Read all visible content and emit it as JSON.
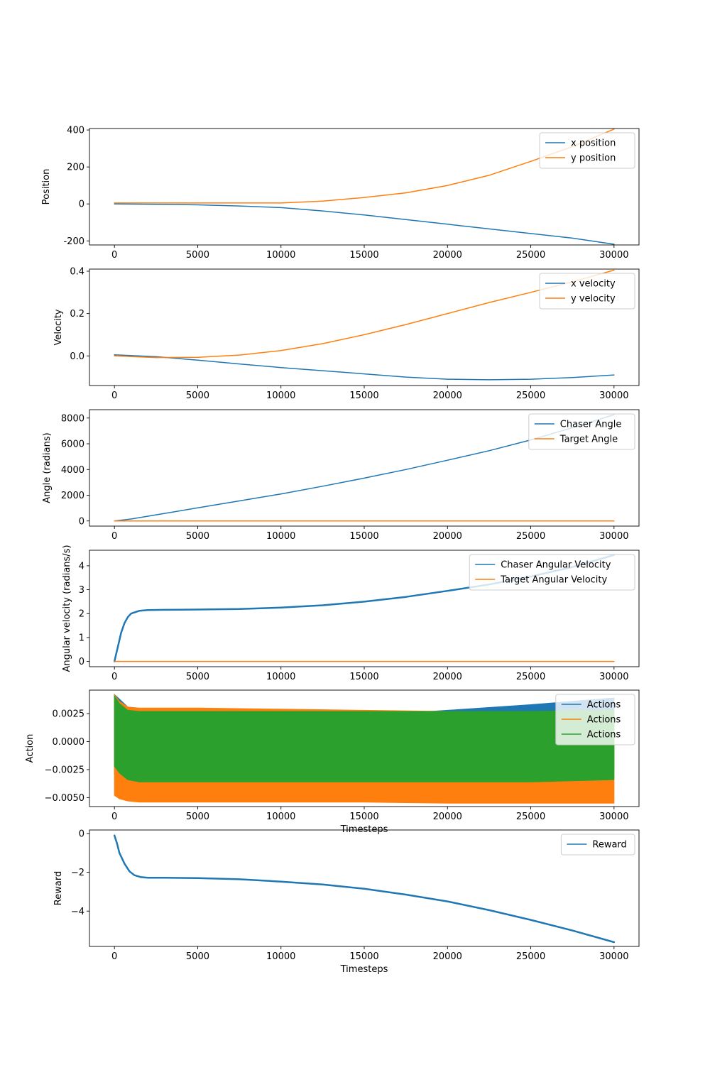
{
  "colors": {
    "blue": "#1f77b4",
    "orange": "#ff7f0e",
    "green": "#2ca02c"
  },
  "chart_data": [
    {
      "type": "line",
      "ylabel": "Position",
      "xlabel": "",
      "xlim": [
        -1500,
        31500
      ],
      "ylim": [
        -222,
        408
      ],
      "xticks": [
        "0",
        "5000",
        "10000",
        "15000",
        "20000",
        "25000",
        "30000"
      ],
      "yticks": [
        [
          "-200",
          -200
        ],
        [
          "0",
          0
        ],
        [
          "200",
          200
        ],
        [
          "400",
          400
        ]
      ],
      "legend_position": "top-right",
      "series": [
        {
          "name": "x position",
          "color": "#1f77b4",
          "x": [
            0,
            2500,
            5000,
            7500,
            10000,
            12500,
            15000,
            17500,
            20000,
            22500,
            25000,
            27500,
            30000
          ],
          "y": [
            0,
            -2,
            -5,
            -11,
            -20,
            -38,
            -60,
            -85,
            -110,
            -135,
            -160,
            -185,
            -218
          ]
        },
        {
          "name": "y position",
          "color": "#ff7f0e",
          "x": [
            0,
            2500,
            5000,
            7500,
            10000,
            12500,
            15000,
            17500,
            20000,
            22500,
            25000,
            27500,
            30000
          ],
          "y": [
            5,
            5,
            5,
            5,
            5,
            15,
            35,
            60,
            100,
            155,
            230,
            310,
            405
          ]
        }
      ]
    },
    {
      "type": "line",
      "ylabel": "Velocity",
      "xlabel": "",
      "xlim": [
        -1500,
        31500
      ],
      "ylim": [
        -0.14,
        0.41
      ],
      "xticks": [
        "0",
        "5000",
        "10000",
        "15000",
        "20000",
        "25000",
        "30000"
      ],
      "yticks": [
        [
          "0.0",
          0.0
        ],
        [
          "0.2",
          0.2
        ],
        [
          "0.4",
          0.4
        ]
      ],
      "legend_position": "top-right",
      "series": [
        {
          "name": "x velocity",
          "color": "#1f77b4",
          "x": [
            0,
            2500,
            5000,
            7500,
            10000,
            12500,
            15000,
            17500,
            20000,
            22500,
            25000,
            27500,
            30000
          ],
          "y": [
            0.005,
            -0.004,
            -0.02,
            -0.038,
            -0.055,
            -0.07,
            -0.085,
            -0.1,
            -0.11,
            -0.113,
            -0.11,
            -0.102,
            -0.09
          ]
        },
        {
          "name": "y velocity",
          "color": "#ff7f0e",
          "x": [
            0,
            2500,
            5000,
            7500,
            10000,
            12500,
            15000,
            17500,
            20000,
            22500,
            25000,
            27500,
            30000
          ],
          "y": [
            0.0,
            -0.008,
            -0.007,
            0.004,
            0.025,
            0.058,
            0.1,
            0.148,
            0.2,
            0.252,
            0.3,
            0.35,
            0.405
          ]
        }
      ]
    },
    {
      "type": "line",
      "ylabel": "Angle (radians)",
      "xlabel": "",
      "xlim": [
        -1500,
        31500
      ],
      "ylim": [
        -400,
        8650
      ],
      "xticks": [
        "0",
        "5000",
        "10000",
        "15000",
        "20000",
        "25000",
        "30000"
      ],
      "yticks": [
        [
          "0",
          0
        ],
        [
          "2000",
          2000
        ],
        [
          "4000",
          4000
        ],
        [
          "6000",
          6000
        ],
        [
          "8000",
          8000
        ]
      ],
      "legend_position": "top-right",
      "series": [
        {
          "name": "Chaser Angle",
          "color": "#1f77b4",
          "x": [
            0,
            1000,
            2500,
            5000,
            7500,
            10000,
            12500,
            15000,
            17500,
            20000,
            22500,
            25000,
            27500,
            30000
          ],
          "y": [
            0,
            150,
            480,
            1020,
            1560,
            2100,
            2700,
            3330,
            4000,
            4720,
            5460,
            6300,
            7250,
            8260
          ]
        },
        {
          "name": "Target Angle",
          "color": "#ff7f0e",
          "x": [
            0,
            30000
          ],
          "y": [
            0,
            0
          ]
        }
      ]
    },
    {
      "type": "line",
      "ylabel": "Angular velocity (radians/s)",
      "xlabel": "",
      "xlim": [
        -1500,
        31500
      ],
      "ylim": [
        -0.22,
        4.65
      ],
      "xticks": [
        "0",
        "5000",
        "10000",
        "15000",
        "20000",
        "25000",
        "30000"
      ],
      "yticks": [
        [
          "0",
          0
        ],
        [
          "1",
          1
        ],
        [
          "2",
          2
        ],
        [
          "3",
          3
        ],
        [
          "4",
          4
        ]
      ],
      "legend_position": "top-right",
      "series": [
        {
          "name": "Chaser Angular Velocity",
          "color": "#1f77b4",
          "x": [
            0,
            100,
            200,
            400,
            600,
            800,
            1000,
            1500,
            2000,
            3000,
            5000,
            7500,
            10000,
            12500,
            15000,
            17500,
            20000,
            22500,
            25000,
            27500,
            30000
          ],
          "y": [
            0,
            0.3,
            0.6,
            1.2,
            1.6,
            1.85,
            2.0,
            2.12,
            2.15,
            2.16,
            2.17,
            2.19,
            2.25,
            2.35,
            2.5,
            2.7,
            2.95,
            3.22,
            3.55,
            3.95,
            4.45
          ],
          "line_width": 2.5
        },
        {
          "name": "Target Angular Velocity",
          "color": "#ff7f0e",
          "x": [
            0,
            30000
          ],
          "y": [
            0,
            0
          ]
        }
      ]
    },
    {
      "type": "area",
      "ylabel": "Action",
      "xlabel": "Timesteps",
      "xlim": [
        -1500,
        31500
      ],
      "ylim": [
        -0.0058,
        0.0046
      ],
      "xticks": [
        "0",
        "5000",
        "10000",
        "15000",
        "20000",
        "25000",
        "30000"
      ],
      "yticks": [
        [
          "0.0025",
          0.0025
        ],
        [
          "0.0000",
          0.0
        ],
        [
          "−0.0025",
          -0.0025
        ],
        [
          "−0.0050",
          -0.005
        ]
      ],
      "legend_position": "top-right",
      "series": [
        {
          "name": "Actions",
          "color": "#1f77b4",
          "x": [
            0,
            300,
            800,
            1500,
            5000,
            10000,
            15000,
            18000,
            20000,
            25000,
            30000
          ],
          "upper": [
            0.0042,
            0.0038,
            0.0031,
            0.0029,
            0.0029,
            0.0028,
            0.0027,
            0.0026,
            0.0028,
            0.0033,
            0.0039
          ],
          "lower": [
            -0.0029,
            -0.0025,
            -0.0025,
            -0.0025,
            -0.0025,
            -0.0025,
            -0.0025,
            -0.0025,
            -0.0025,
            -0.0025,
            -0.0025
          ]
        },
        {
          "name": "Actions",
          "color": "#ff7f0e",
          "x": [
            0,
            300,
            800,
            1500,
            5000,
            10000,
            15000,
            20000,
            25000,
            30000
          ],
          "upper": [
            0.0042,
            0.0036,
            0.0031,
            0.003,
            0.003,
            0.0029,
            0.0028,
            0.0027,
            0.0027,
            0.0027
          ],
          "lower": [
            -0.0048,
            -0.0051,
            -0.0053,
            -0.0054,
            -0.0054,
            -0.0054,
            -0.0054,
            -0.0055,
            -0.0055,
            -0.0055
          ]
        },
        {
          "name": "Actions",
          "color": "#2ca02c",
          "x": [
            0,
            300,
            800,
            1500,
            5000,
            10000,
            15000,
            20000,
            25000,
            30000
          ],
          "upper": [
            0.0041,
            0.0034,
            0.0028,
            0.0027,
            0.0027,
            0.0027,
            0.0027,
            0.0027,
            0.0027,
            0.0028
          ],
          "lower": [
            -0.0022,
            -0.0028,
            -0.0034,
            -0.0036,
            -0.0036,
            -0.0036,
            -0.0036,
            -0.0036,
            -0.0036,
            -0.0034
          ]
        }
      ]
    },
    {
      "type": "line",
      "ylabel": "Reward",
      "xlabel": "Timesteps",
      "xlim": [
        -1500,
        31500
      ],
      "ylim": [
        -5.82,
        0.18
      ],
      "xticks": [
        "0",
        "5000",
        "10000",
        "15000",
        "20000",
        "25000",
        "30000"
      ],
      "yticks": [
        [
          "0",
          0
        ],
        [
          "−2",
          -2
        ],
        [
          "−4",
          -4
        ]
      ],
      "legend_position": "top-right",
      "series": [
        {
          "name": "Reward",
          "color": "#1f77b4",
          "x": [
            0,
            150,
            300,
            600,
            900,
            1200,
            1600,
            2000,
            3000,
            5000,
            7500,
            10000,
            12500,
            15000,
            17500,
            20000,
            22500,
            25000,
            27500,
            30000
          ],
          "y": [
            -0.1,
            -0.5,
            -1.0,
            -1.55,
            -1.95,
            -2.15,
            -2.25,
            -2.28,
            -2.28,
            -2.3,
            -2.36,
            -2.48,
            -2.63,
            -2.85,
            -3.15,
            -3.5,
            -3.95,
            -4.45,
            -5.0,
            -5.6
          ],
          "line_width": 2.5
        }
      ]
    }
  ]
}
